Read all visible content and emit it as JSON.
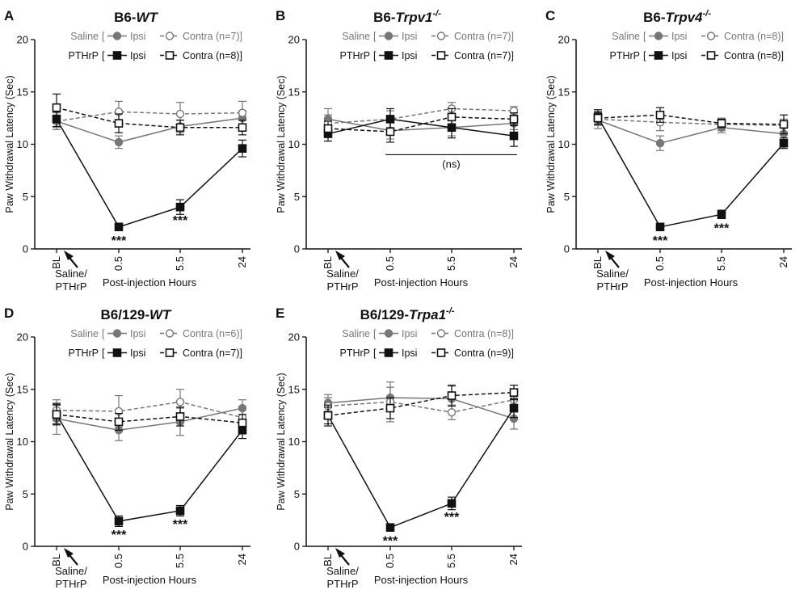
{
  "figure": {
    "common": {
      "ylabel": "Paw Withdrawal Latency (Sec)",
      "xlabel": "Post-injection Hours",
      "injection_label_line1": "Saline/",
      "injection_label_line2": "PTHrP",
      "significance_marker": "***",
      "ns_label": "(ns)",
      "legend_group_saline": "Saline",
      "legend_group_pthrp": "PTHrP",
      "legend_ipsi": "Ipsi",
      "legend_contra": "Contra",
      "colors": {
        "saline": "#777777",
        "pthrp": "#111111"
      }
    }
  },
  "chart_data": [
    {
      "type": "line",
      "panel_letter": "A",
      "title_prefix": "B6-",
      "title_strain": "WT",
      "title_sup": "",
      "categories": [
        "BL",
        "0.5",
        "5.5",
        "24"
      ],
      "ylim": [
        0,
        20
      ],
      "yticks": [
        0,
        5,
        10,
        15,
        20
      ],
      "saline_n_text": "(n=7)]",
      "pthrp_n_text": "(n=8)]",
      "series": [
        {
          "name": "Saline Ipsi",
          "values": [
            12.2,
            10.2,
            11.7,
            12.5
          ],
          "errors": [
            0.6,
            0.6,
            0.6,
            0.7
          ]
        },
        {
          "name": "Saline Contra",
          "values": [
            12.2,
            13.1,
            12.9,
            13.0
          ],
          "errors": [
            0.8,
            1.0,
            1.1,
            1.1
          ]
        },
        {
          "name": "PTHrP Ipsi",
          "values": [
            12.4,
            2.1,
            4.0,
            9.6
          ],
          "errors": [
            0.7,
            0.2,
            0.7,
            0.8
          ]
        },
        {
          "name": "PTHrP Contra",
          "values": [
            13.5,
            12.0,
            11.6,
            11.6
          ],
          "errors": [
            1.3,
            0.9,
            0.7,
            0.7
          ]
        }
      ],
      "significance": [
        {
          "category": "0.5",
          "value": 2.1,
          "label": "***"
        },
        {
          "category": "5.5",
          "value": 4.0,
          "label": "***"
        }
      ]
    },
    {
      "type": "line",
      "panel_letter": "B",
      "title_prefix": "B6-",
      "title_strain": "Trpv1",
      "title_sup": "-/-",
      "categories": [
        "BL",
        "0.5",
        "5.5",
        "24"
      ],
      "ylim": [
        0,
        20
      ],
      "yticks": [
        0,
        5,
        10,
        15,
        20
      ],
      "saline_n_text": "(n=7)]",
      "pthrp_n_text": "(n=7)]",
      "series": [
        {
          "name": "Saline Ipsi",
          "values": [
            12.4,
            11.3,
            11.6,
            12.0
          ],
          "errors": [
            1.0,
            0.8,
            0.8,
            0.6
          ]
        },
        {
          "name": "Saline Contra",
          "values": [
            12.0,
            12.4,
            13.4,
            13.2
          ],
          "errors": [
            0.8,
            0.8,
            0.6,
            0.4
          ]
        },
        {
          "name": "PTHrP Ipsi",
          "values": [
            11.0,
            12.4,
            11.6,
            10.8
          ],
          "errors": [
            0.7,
            1.0,
            1.0,
            1.0
          ]
        },
        {
          "name": "PTHrP Contra",
          "values": [
            11.5,
            11.2,
            12.6,
            12.4
          ],
          "errors": [
            0.7,
            1.0,
            0.8,
            0.6
          ]
        }
      ],
      "significance": [],
      "ns_bracket": {
        "from": "0.5",
        "to": "24",
        "value": 9.0
      }
    },
    {
      "type": "line",
      "panel_letter": "C",
      "title_prefix": "B6-",
      "title_strain": "Trpv4",
      "title_sup": "-/-",
      "categories": [
        "BL",
        "0.5",
        "5.5",
        "24"
      ],
      "ylim": [
        0,
        20
      ],
      "yticks": [
        0,
        5,
        10,
        15,
        20
      ],
      "saline_n_text": "(n=8)]",
      "pthrp_n_text": "(n=8)]",
      "series": [
        {
          "name": "Saline Ipsi",
          "values": [
            12.3,
            10.1,
            11.6,
            11.0
          ],
          "errors": [
            0.8,
            0.7,
            0.5,
            0.6
          ]
        },
        {
          "name": "Saline Contra",
          "values": [
            12.4,
            12.1,
            11.9,
            11.8
          ],
          "errors": [
            0.6,
            0.8,
            0.6,
            0.6
          ]
        },
        {
          "name": "PTHrP Ipsi",
          "values": [
            12.6,
            2.1,
            3.3,
            10.1
          ],
          "errors": [
            0.7,
            0.3,
            0.4,
            0.5
          ]
        },
        {
          "name": "PTHrP Contra",
          "values": [
            12.5,
            12.8,
            12.0,
            11.9
          ],
          "errors": [
            0.6,
            0.7,
            0.4,
            0.9
          ]
        }
      ],
      "significance": [
        {
          "category": "0.5",
          "value": 2.1,
          "label": "***"
        },
        {
          "category": "5.5",
          "value": 3.3,
          "label": "***"
        }
      ]
    },
    {
      "type": "line",
      "panel_letter": "D",
      "title_prefix": "B6/129-",
      "title_strain": "WT",
      "title_sup": "",
      "categories": [
        "BL",
        "0.5",
        "5.5",
        "24"
      ],
      "ylim": [
        0,
        20
      ],
      "yticks": [
        0,
        5,
        10,
        15,
        20
      ],
      "saline_n_text": "(n=6)]",
      "pthrp_n_text": "(n=7)]",
      "series": [
        {
          "name": "Saline Ipsi",
          "values": [
            12.2,
            11.1,
            11.9,
            13.2
          ],
          "errors": [
            1.5,
            1.0,
            1.3,
            0.8
          ]
        },
        {
          "name": "Saline Contra",
          "values": [
            13.0,
            12.9,
            13.8,
            12.3
          ],
          "errors": [
            1.0,
            1.5,
            1.2,
            1.0
          ]
        },
        {
          "name": "PTHrP Ipsi",
          "values": [
            12.6,
            2.4,
            3.4,
            11.1
          ],
          "errors": [
            1.0,
            0.5,
            0.5,
            0.8
          ]
        },
        {
          "name": "PTHrP Contra",
          "values": [
            12.6,
            11.9,
            12.4,
            11.8
          ],
          "errors": [
            0.9,
            0.8,
            0.9,
            0.8
          ]
        }
      ],
      "significance": [
        {
          "category": "0.5",
          "value": 2.4,
          "label": "***"
        },
        {
          "category": "5.5",
          "value": 3.4,
          "label": "***"
        }
      ]
    },
    {
      "type": "line",
      "panel_letter": "E",
      "title_prefix": "B6/129-",
      "title_strain": "Trpa1",
      "title_sup": "-/-",
      "categories": [
        "BL",
        "0.5",
        "5.5",
        "24"
      ],
      "ylim": [
        0,
        20
      ],
      "yticks": [
        0,
        5,
        10,
        15,
        20
      ],
      "saline_n_text": "(n=8)]",
      "pthrp_n_text": "(n=9)]",
      "series": [
        {
          "name": "Saline Ipsi",
          "values": [
            13.7,
            14.2,
            14.1,
            12.2
          ],
          "errors": [
            0.8,
            1.0,
            1.2,
            1.0
          ]
        },
        {
          "name": "Saline Contra",
          "values": [
            13.4,
            13.8,
            12.8,
            14.0
          ],
          "errors": [
            0.8,
            1.9,
            0.7,
            0.8
          ]
        },
        {
          "name": "PTHrP Ipsi",
          "values": [
            12.5,
            1.8,
            4.1,
            13.2
          ],
          "errors": [
            1.0,
            0.2,
            0.6,
            0.9
          ]
        },
        {
          "name": "PTHrP Contra",
          "values": [
            12.5,
            13.2,
            14.4,
            14.7
          ],
          "errors": [
            0.8,
            1.0,
            1.0,
            0.7
          ]
        }
      ],
      "significance": [
        {
          "category": "0.5",
          "value": 1.8,
          "label": "***"
        },
        {
          "category": "5.5",
          "value": 4.1,
          "label": "***"
        }
      ]
    }
  ]
}
